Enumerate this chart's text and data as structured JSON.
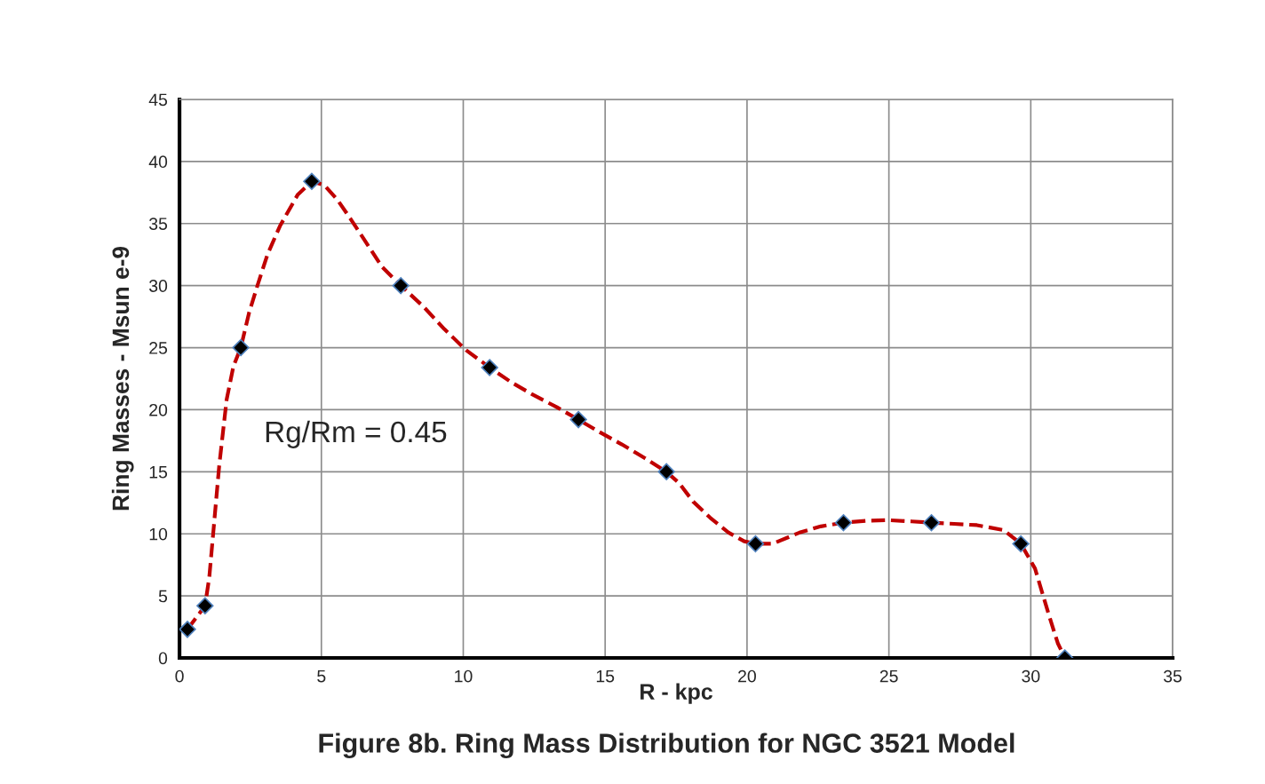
{
  "chart_data": {
    "type": "line",
    "title": "Figure 8b. Ring Mass Distribution for NGC 3521 Model",
    "xlabel": "R - kpc",
    "ylabel": "Ring Masses - Msun e-9",
    "annotations": [
      "Rg/Rm = 0.45"
    ],
    "series": [
      {
        "color": "#c00000",
        "line_style": "dashed",
        "marker": "none",
        "x": [
          0.28,
          0.9,
          1.05,
          1.19,
          1.4,
          1.66,
          1.9,
          2.16,
          2.45,
          2.76,
          3.1,
          3.54,
          4.16,
          4.66,
          5.1,
          5.57,
          6.05,
          6.51,
          7.14,
          7.8,
          8.6,
          9.33,
          10.1,
          10.93,
          11.7,
          12.46,
          13.3,
          14.06,
          14.8,
          15.59,
          16.4,
          17.16,
          17.6,
          18.1,
          18.7,
          19.35,
          19.9,
          20.3,
          20.9,
          21.85,
          22.6,
          23.4,
          24.2,
          24.98,
          25.8,
          26.5,
          27.3,
          28.1,
          29.05,
          29.65,
          30.15,
          30.62,
          30.95,
          31.2
        ],
        "values": [
          2.3,
          4.2,
          6.5,
          10.1,
          15.5,
          20.8,
          23.5,
          25.0,
          27.8,
          30.1,
          32.5,
          34.8,
          37.3,
          38.4,
          38.1,
          36.9,
          35.3,
          33.7,
          31.5,
          30.0,
          28.3,
          26.5,
          24.8,
          23.4,
          22.2,
          21.2,
          20.2,
          19.2,
          18.2,
          17.2,
          16.1,
          15.0,
          14.1,
          12.6,
          11.3,
          10.1,
          9.4,
          9.2,
          9.2,
          10.1,
          10.6,
          10.9,
          11.05,
          11.1,
          11.0,
          10.9,
          10.8,
          10.7,
          10.3,
          9.2,
          7.2,
          3.6,
          1.2,
          0
        ]
      },
      {
        "type": "scatter",
        "color": "#000000",
        "marker": "diamond",
        "x": [
          0.28,
          0.9,
          2.16,
          4.66,
          7.8,
          10.93,
          14.06,
          17.16,
          20.3,
          23.4,
          26.5,
          29.65,
          31.2
        ],
        "values": [
          2.3,
          4.2,
          25.0,
          38.4,
          30.0,
          23.4,
          19.2,
          15.0,
          9.2,
          10.9,
          10.9,
          9.2,
          0
        ]
      }
    ],
    "xlim": [
      0,
      35
    ],
    "xticks": [
      0,
      5,
      10,
      15,
      20,
      25,
      30,
      35
    ],
    "ylim": [
      0,
      45
    ],
    "yticks": [
      0,
      5,
      10,
      15,
      20,
      25,
      30,
      35,
      40,
      45
    ],
    "grid": true
  }
}
